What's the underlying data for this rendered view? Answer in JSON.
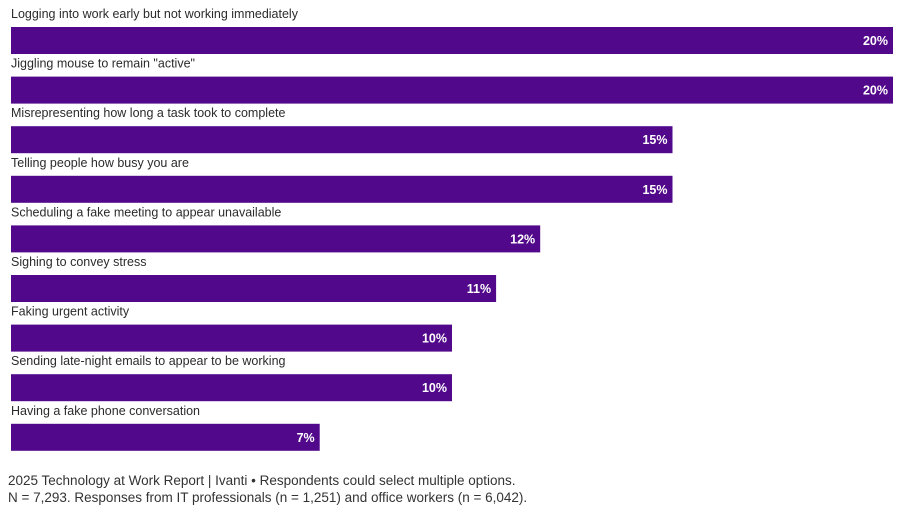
{
  "chart_data": {
    "type": "bar",
    "orientation": "horizontal",
    "categories": [
      "Logging into work early but not working immediately",
      "Jiggling mouse to remain \"active\"",
      "Misrepresenting how long a task took to complete",
      "Telling people how busy you are",
      "Scheduling a fake meeting to appear unavailable",
      "Sighing to convey stress",
      "Faking urgent activity",
      "Sending late-night emails to appear to be working",
      "Having a fake phone conversation"
    ],
    "values": [
      20,
      20,
      15,
      15,
      12,
      11,
      10,
      10,
      7
    ],
    "value_labels": [
      "20%",
      "20%",
      "15%",
      "15%",
      "12%",
      "11%",
      "10%",
      "10%",
      "7%"
    ],
    "unit": "%",
    "xlim": [
      0,
      20
    ],
    "bar_color": "#52088a",
    "grid": false,
    "legend": "none"
  },
  "footer": {
    "line1": "2025 Technology at Work Report | Ivanti • Respondents could select multiple options.",
    "line2": "N = 7,293. Responses from IT professionals (n = 1,251) and office workers (n = 6,042)."
  }
}
